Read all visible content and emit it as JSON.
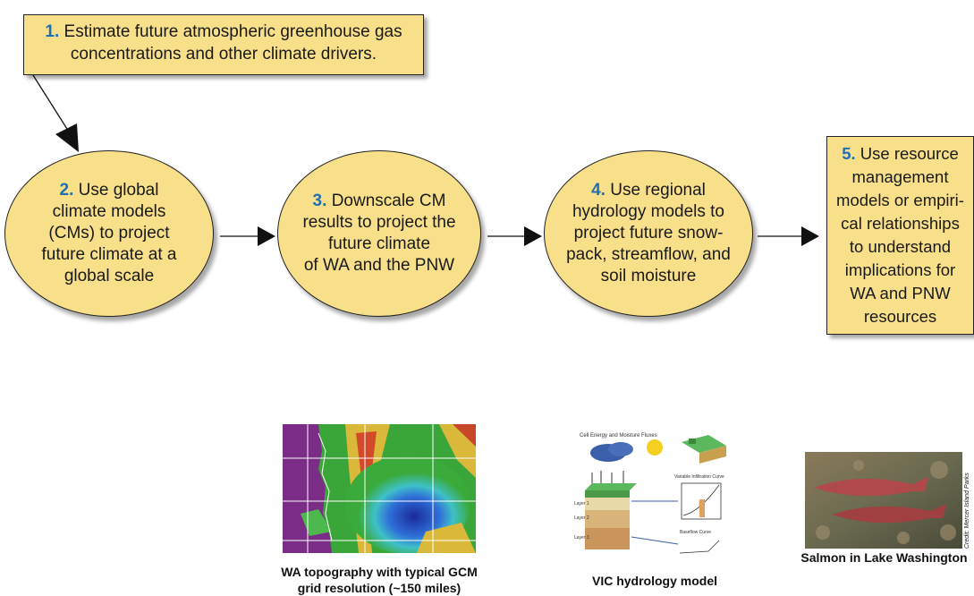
{
  "step1": {
    "number": "1.",
    "text_line1": "Estimate future atmospheric greenhouse gas",
    "text_line2": "concentrations and other climate drivers."
  },
  "step2": {
    "number": "2.",
    "lines": [
      "Use global",
      "climate models",
      "(CMs) to project",
      "future climate at a",
      "global scale"
    ]
  },
  "step3": {
    "number": "3.",
    "lines": [
      "Downscale CM",
      "results to project the",
      "future climate",
      "of WA and the PNW"
    ]
  },
  "step4": {
    "number": "4.",
    "lines": [
      "Use regional",
      "hydrology models to",
      "project future snow-",
      "pack, streamflow, and",
      "soil moisture"
    ]
  },
  "step5": {
    "number": "5.",
    "lines": [
      "Use resource",
      "management",
      "models or empiri-",
      "cal relationships",
      "to  understand",
      "implications for",
      "WA and PNW",
      "resources"
    ]
  },
  "captions": {
    "topo_line1": "WA topography with typical GCM",
    "topo_line2": "grid resolution (~150 miles)",
    "vic": "VIC hydrology model",
    "salmon": "Salmon in Lake Washington",
    "photo_credit": "Credit: Mercer Island Parks"
  },
  "vic_labels": {
    "title": "Cell Energy and Moisture Fluxes",
    "infil": "Variable Infiltration Curve",
    "baseflow": "Baseflow Curve",
    "layer1": "Layer 1",
    "layer2": "Layer 2",
    "layer3": "Layer 3"
  },
  "colors": {
    "box_fill": "#f8df8a",
    "number_blue": "#1f6fb3"
  }
}
